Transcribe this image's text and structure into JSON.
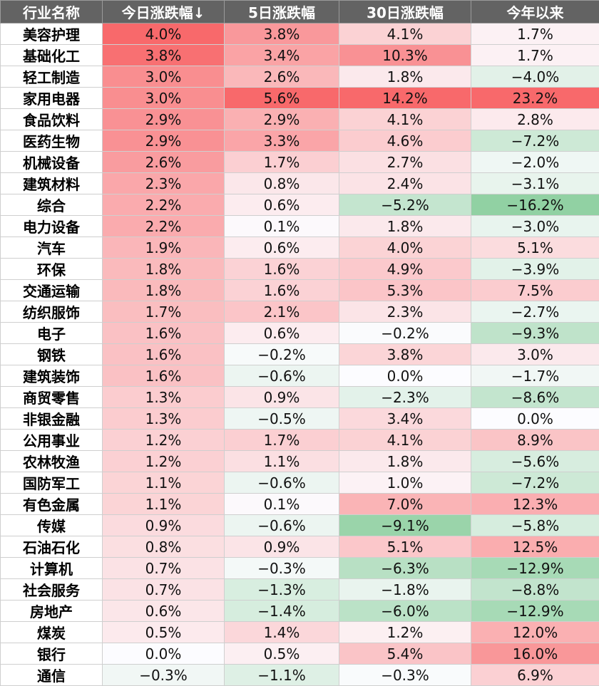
{
  "colors": {
    "positive": "#f8696b",
    "negative": "#63be7b",
    "neutral": "#fcfcff"
  },
  "table": {
    "headers": [
      "行业名称",
      "今日涨跌幅↓",
      "5日涨跌幅",
      "30日涨跌幅",
      "今年以来"
    ],
    "rows": [
      [
        "美容护理",
        "4.0%",
        "3.8%",
        "4.1%",
        "1.7%"
      ],
      [
        "基础化工",
        "3.8%",
        "3.4%",
        "10.3%",
        "1.7%"
      ],
      [
        "轻工制造",
        "3.0%",
        "2.6%",
        "1.8%",
        "−4.0%"
      ],
      [
        "家用电器",
        "3.0%",
        "5.6%",
        "14.2%",
        "23.2%"
      ],
      [
        "食品饮料",
        "2.9%",
        "2.9%",
        "4.1%",
        "2.8%"
      ],
      [
        "医药生物",
        "2.9%",
        "3.3%",
        "4.6%",
        "−7.2%"
      ],
      [
        "机械设备",
        "2.6%",
        "1.7%",
        "2.7%",
        "−2.0%"
      ],
      [
        "建筑材料",
        "2.3%",
        "0.8%",
        "2.4%",
        "−3.1%"
      ],
      [
        "综合",
        "2.2%",
        "0.6%",
        "−5.2%",
        "−16.2%"
      ],
      [
        "电力设备",
        "2.2%",
        "0.1%",
        "1.8%",
        "−3.0%"
      ],
      [
        "汽车",
        "1.9%",
        "0.6%",
        "4.0%",
        "5.1%"
      ],
      [
        "环保",
        "1.8%",
        "1.6%",
        "4.9%",
        "−3.9%"
      ],
      [
        "交通运输",
        "1.8%",
        "1.6%",
        "5.3%",
        "7.5%"
      ],
      [
        "纺织服饰",
        "1.7%",
        "2.1%",
        "2.3%",
        "−2.7%"
      ],
      [
        "电子",
        "1.6%",
        "0.6%",
        "−0.2%",
        "−9.3%"
      ],
      [
        "钢铁",
        "1.6%",
        "−0.2%",
        "3.8%",
        "3.0%"
      ],
      [
        "建筑装饰",
        "1.6%",
        "−0.6%",
        "0.0%",
        "−1.7%"
      ],
      [
        "商贸零售",
        "1.3%",
        "0.9%",
        "−2.3%",
        "−8.6%"
      ],
      [
        "非银金融",
        "1.3%",
        "−0.5%",
        "3.4%",
        "0.0%"
      ],
      [
        "公用事业",
        "1.2%",
        "1.7%",
        "4.1%",
        "8.9%"
      ],
      [
        "农林牧渔",
        "1.2%",
        "1.1%",
        "1.8%",
        "−5.6%"
      ],
      [
        "国防军工",
        "1.1%",
        "−0.6%",
        "1.0%",
        "−7.2%"
      ],
      [
        "有色金属",
        "1.1%",
        "0.1%",
        "7.0%",
        "12.3%"
      ],
      [
        "传媒",
        "0.9%",
        "−0.6%",
        "−9.1%",
        "−5.8%"
      ],
      [
        "石油石化",
        "0.8%",
        "0.9%",
        "5.1%",
        "12.5%"
      ],
      [
        "计算机",
        "0.7%",
        "−0.3%",
        "−6.3%",
        "−12.9%"
      ],
      [
        "社会服务",
        "0.7%",
        "−1.3%",
        "−1.8%",
        "−8.8%"
      ],
      [
        "房地产",
        "0.6%",
        "−1.4%",
        "−6.0%",
        "−12.9%"
      ],
      [
        "煤炭",
        "0.5%",
        "1.4%",
        "1.2%",
        "12.0%"
      ],
      [
        "银行",
        "0.0%",
        "0.5%",
        "5.4%",
        "16.0%"
      ],
      [
        "通信",
        "−0.3%",
        "−1.1%",
        "−0.3%",
        "6.9%"
      ]
    ]
  }
}
